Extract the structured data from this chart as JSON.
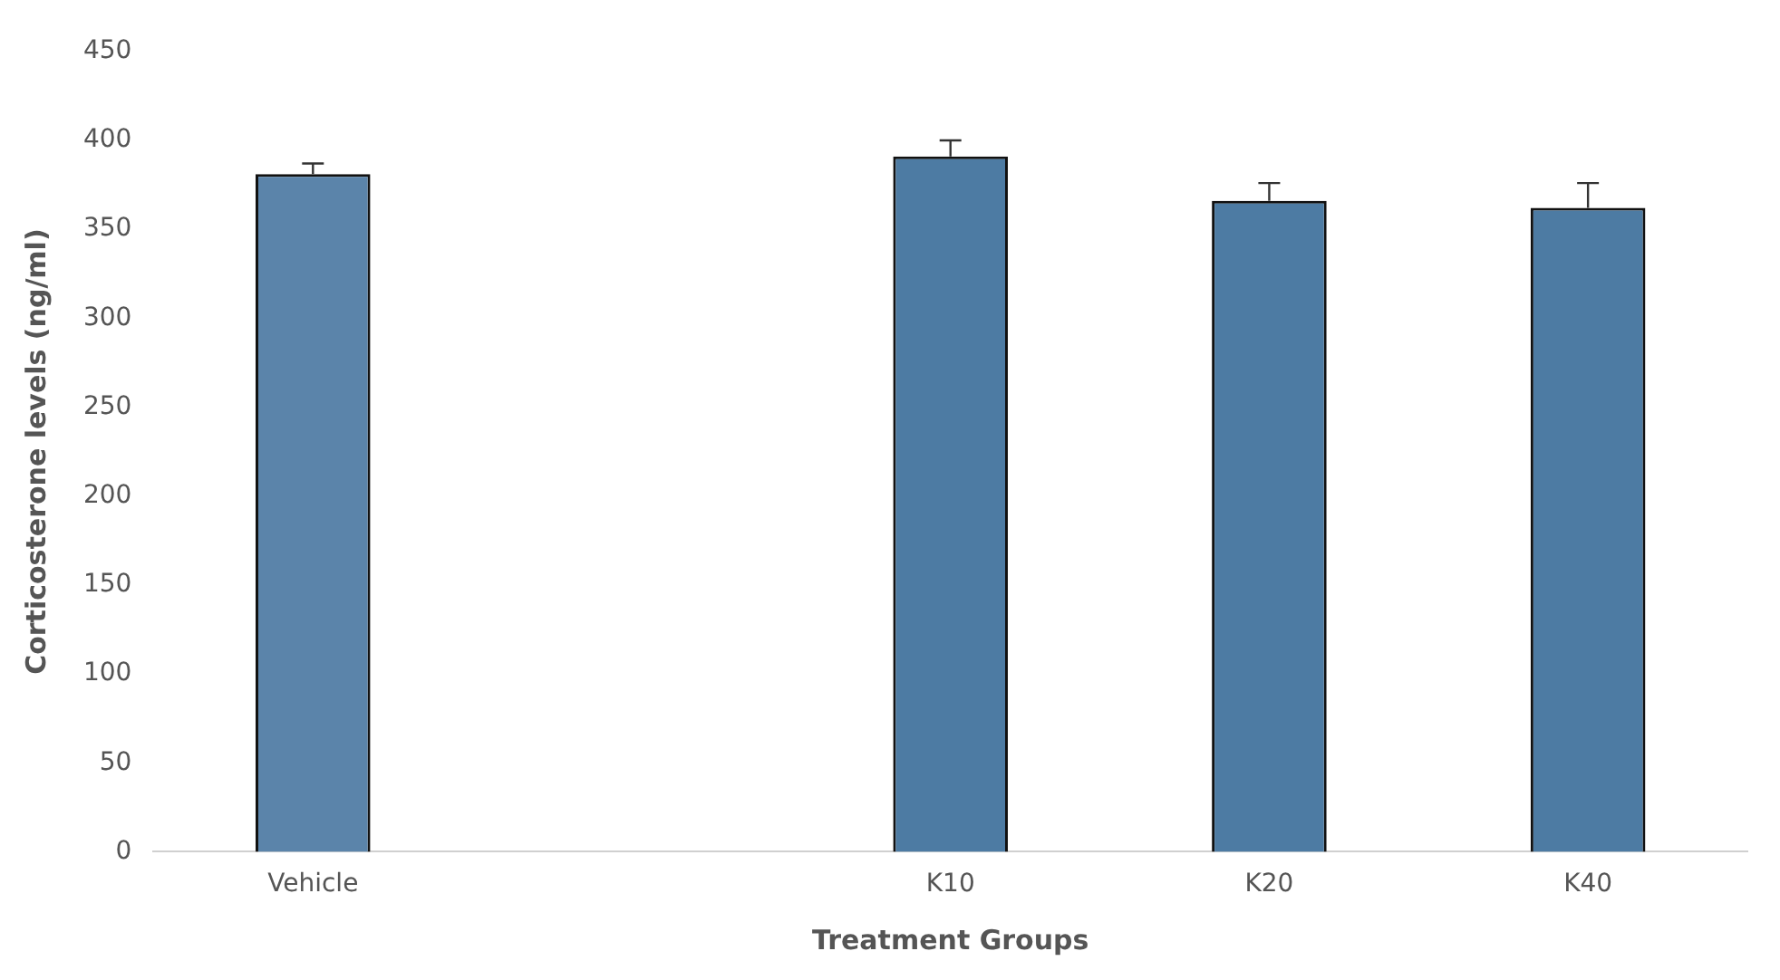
{
  "chart_data": {
    "type": "bar",
    "xlabel": "Treatment Groups",
    "ylabel": "Corticosterone levels (ng/ml)",
    "categories": [
      "Vehicle",
      null,
      "K10",
      "K20",
      "K40"
    ],
    "values": [
      381,
      null,
      391,
      366,
      362
    ],
    "colors": [
      "#5b84aa",
      null,
      "#4d7ba3",
      "#4d7ba3",
      "#4d7ba3"
    ],
    "errors": [
      [
        381,
        387
      ],
      null,
      [
        391,
        400
      ],
      [
        366,
        376
      ],
      [
        362,
        376
      ]
    ],
    "ylim": [
      0,
      450
    ],
    "yticks": [
      0,
      50,
      100,
      150,
      200,
      250,
      300,
      350,
      400,
      450
    ],
    "grid": false,
    "legend": false
  }
}
